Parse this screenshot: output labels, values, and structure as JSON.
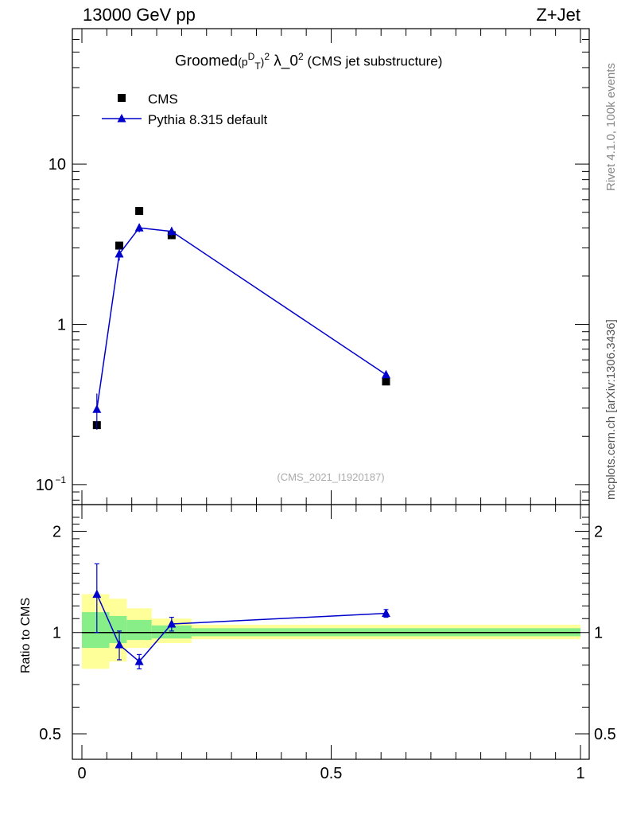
{
  "header": {
    "left": "13000 GeV pp",
    "right": "Z+Jet"
  },
  "title": {
    "prefix": "Groomed",
    "p": "(p",
    "sup_D": "D",
    "sub_T": "T",
    "close": ")",
    "sup2": "2",
    "lambda": " λ_0",
    "sup2b": "2",
    "suffix": " (CMS jet substructure)"
  },
  "side": {
    "rivet": "Rivet 4.1.0,  100k events",
    "mcplots": "mcplots.cern.ch [arXiv:1306.3436]"
  },
  "watermark": "(CMS_2021_I1920187)",
  "colors": {
    "mc": "#0000cc",
    "band_outer": "#ffff99",
    "band_inner": "#88ee88"
  },
  "chart_data": {
    "type": "scatter",
    "title": "Groomed (p_T^D)^2 λ_0^2 (CMS jet substructure)",
    "yscale": "log",
    "ylim": [
      0.075,
      70
    ],
    "xlim": [
      -0.02,
      1.02
    ],
    "legend": [
      {
        "name": "CMS",
        "marker": "square"
      },
      {
        "name": "Pythia 8.315 default",
        "marker": "triangle"
      }
    ],
    "y_ticks": [
      {
        "value": 10,
        "label": "10"
      },
      {
        "value": 1,
        "label": "1"
      },
      {
        "value": 0.1,
        "label": "10−1"
      }
    ],
    "x_ticks": [
      {
        "value": 0,
        "label": "0"
      },
      {
        "value": 0.5,
        "label": "0.5"
      },
      {
        "value": 1,
        "label": "1"
      }
    ],
    "series": [
      {
        "name": "CMS",
        "x": [
          0.03,
          0.075,
          0.115,
          0.18,
          0.61
        ],
        "y": [
          0.235,
          3.1,
          5.1,
          3.6,
          0.44
        ]
      },
      {
        "name": "Pythia 8.315 default",
        "x": [
          0.03,
          0.075,
          0.115,
          0.18,
          0.61
        ],
        "y": [
          0.295,
          2.75,
          4.0,
          3.8,
          0.485
        ],
        "yerr": [
          0.075,
          0.25,
          0.25,
          0.25,
          0.02
        ]
      }
    ],
    "ratio": {
      "ylabel": "Ratio to CMS",
      "ylim": [
        0.42,
        2.4
      ],
      "y_ticks": [
        {
          "value": 2,
          "label": "2"
        },
        {
          "value": 1,
          "label": "1"
        },
        {
          "value": 0.5,
          "label": "0.5"
        }
      ],
      "mc_x": [
        0.03,
        0.075,
        0.115,
        0.18,
        0.61
      ],
      "mc_y": [
        1.3,
        0.92,
        0.82,
        1.06,
        1.14
      ],
      "mc_yerr": [
        0.3,
        0.09,
        0.04,
        0.05,
        0.03
      ],
      "bands": [
        {
          "x0": 0.0,
          "x1": 0.055,
          "outer": [
            0.78,
            1.3
          ],
          "inner": [
            0.9,
            1.15
          ]
        },
        {
          "x0": 0.055,
          "x1": 0.09,
          "outer": [
            0.82,
            1.26
          ],
          "inner": [
            0.93,
            1.12
          ]
        },
        {
          "x0": 0.09,
          "x1": 0.14,
          "outer": [
            0.9,
            1.18
          ],
          "inner": [
            0.95,
            1.09
          ]
        },
        {
          "x0": 0.14,
          "x1": 0.22,
          "outer": [
            0.93,
            1.1
          ],
          "inner": [
            0.96,
            1.05
          ]
        },
        {
          "x0": 0.22,
          "x1": 1.0,
          "outer": [
            0.955,
            1.055
          ],
          "inner": [
            0.975,
            1.03
          ]
        }
      ]
    }
  }
}
